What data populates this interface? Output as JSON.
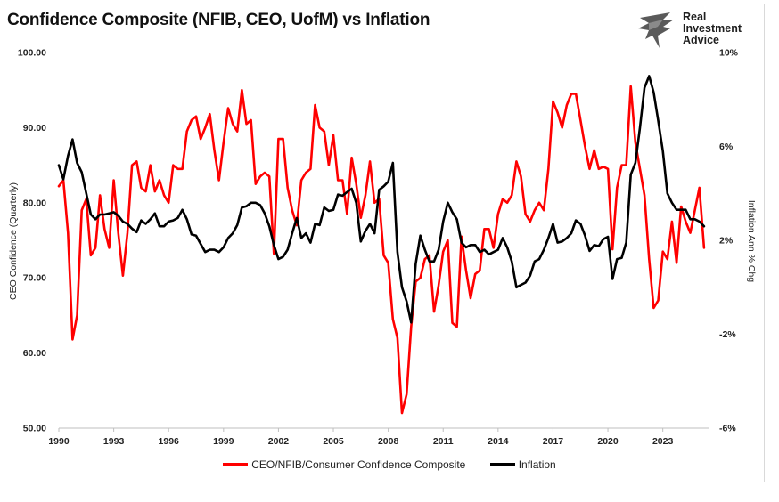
{
  "title": "Confidence Composite (NFIB, CEO, UofM) vs Inflation",
  "logo": {
    "line1": "Real",
    "line2": "Investment",
    "line3": "Advice"
  },
  "chart_data": {
    "type": "line",
    "title": "Confidence Composite (NFIB, CEO, UofM) vs Inflation",
    "ylabel": "CEO Confidence (Quarterly)",
    "y2label": "Inflation Ann % Chg",
    "ylim": [
      50,
      100
    ],
    "y2lim": [
      -6,
      10
    ],
    "xlim": [
      1990,
      2025.5
    ],
    "y_ticks": [
      "50.00",
      "60.00",
      "70.00",
      "80.00",
      "90.00",
      "100.00"
    ],
    "y2_ticks": [
      "-6%",
      "-2%",
      "2%",
      "6%",
      "10%"
    ],
    "x_ticks": [
      "1990",
      "1993",
      "1996",
      "1999",
      "2002",
      "2005",
      "2008",
      "2011",
      "2014",
      "2017",
      "2020",
      "2023"
    ],
    "grid": "off",
    "legend_position": "bottom",
    "series": [
      {
        "name": "CEO/NFIB/Consumer Confidence Composite",
        "color": "#ff0000",
        "axis": "left",
        "points": [
          [
            1990,
            82.2
          ],
          [
            1990.25,
            83
          ],
          [
            1990.5,
            76
          ],
          [
            1990.75,
            61.8
          ],
          [
            1991,
            65
          ],
          [
            1991.25,
            79
          ],
          [
            1991.5,
            80.5
          ],
          [
            1991.75,
            73
          ],
          [
            1992,
            74
          ],
          [
            1992.25,
            81
          ],
          [
            1992.5,
            76.5
          ],
          [
            1992.75,
            74
          ],
          [
            1993,
            83
          ],
          [
            1993.25,
            76
          ],
          [
            1993.5,
            70.3
          ],
          [
            1993.75,
            76
          ],
          [
            1994,
            85
          ],
          [
            1994.25,
            85.5
          ],
          [
            1994.5,
            82
          ],
          [
            1994.75,
            81.5
          ],
          [
            1995,
            85
          ],
          [
            1995.25,
            81.5
          ],
          [
            1995.5,
            83
          ],
          [
            1995.75,
            81
          ],
          [
            1996,
            80
          ],
          [
            1996.25,
            85
          ],
          [
            1996.5,
            84.5
          ],
          [
            1996.75,
            84.5
          ],
          [
            1997,
            89.5
          ],
          [
            1997.25,
            91
          ],
          [
            1997.5,
            91.5
          ],
          [
            1997.75,
            88.5
          ],
          [
            1998,
            90
          ],
          [
            1998.25,
            91.8
          ],
          [
            1998.5,
            87
          ],
          [
            1998.75,
            83
          ],
          [
            1999,
            88
          ],
          [
            1999.25,
            92.6
          ],
          [
            1999.5,
            90.5
          ],
          [
            1999.75,
            89.5
          ],
          [
            2000,
            95
          ],
          [
            2000.25,
            90.5
          ],
          [
            2000.5,
            91
          ],
          [
            2000.75,
            82.5
          ],
          [
            2001,
            83.5
          ],
          [
            2001.25,
            84
          ],
          [
            2001.5,
            83.5
          ],
          [
            2001.75,
            73.2
          ],
          [
            2002,
            88.5
          ],
          [
            2002.25,
            88.5
          ],
          [
            2002.5,
            82
          ],
          [
            2002.75,
            79
          ],
          [
            2003,
            77
          ],
          [
            2003.25,
            83
          ],
          [
            2003.5,
            84
          ],
          [
            2003.75,
            84.5
          ],
          [
            2004,
            93
          ],
          [
            2004.25,
            90
          ],
          [
            2004.5,
            89.5
          ],
          [
            2004.75,
            85
          ],
          [
            2005,
            89
          ],
          [
            2005.25,
            83
          ],
          [
            2005.5,
            83
          ],
          [
            2005.75,
            78.5
          ],
          [
            2006,
            86
          ],
          [
            2006.25,
            82.5
          ],
          [
            2006.5,
            78
          ],
          [
            2006.75,
            81
          ],
          [
            2007,
            85.5
          ],
          [
            2007.25,
            80
          ],
          [
            2007.5,
            80.5
          ],
          [
            2007.75,
            73
          ],
          [
            2008,
            72
          ],
          [
            2008.25,
            64.5
          ],
          [
            2008.5,
            62
          ],
          [
            2008.75,
            52
          ],
          [
            2009,
            54.5
          ],
          [
            2009.25,
            63.5
          ],
          [
            2009.5,
            69.5
          ],
          [
            2009.75,
            70
          ],
          [
            2010,
            72.5
          ],
          [
            2010.25,
            73
          ],
          [
            2010.5,
            65.5
          ],
          [
            2010.75,
            69
          ],
          [
            2011,
            73.5
          ],
          [
            2011.25,
            75
          ],
          [
            2011.5,
            64
          ],
          [
            2011.75,
            63.5
          ],
          [
            2012,
            75.5
          ],
          [
            2012.25,
            71
          ],
          [
            2012.5,
            67.3
          ],
          [
            2012.75,
            70.5
          ],
          [
            2013,
            71
          ],
          [
            2013.25,
            76.5
          ],
          [
            2013.5,
            76.5
          ],
          [
            2013.75,
            74
          ],
          [
            2014,
            78.5
          ],
          [
            2014.25,
            80.5
          ],
          [
            2014.5,
            80
          ],
          [
            2014.75,
            81
          ],
          [
            2015,
            85.5
          ],
          [
            2015.25,
            83.5
          ],
          [
            2015.5,
            78.5
          ],
          [
            2015.75,
            77.5
          ],
          [
            2016,
            79
          ],
          [
            2016.25,
            80
          ],
          [
            2016.5,
            79
          ],
          [
            2016.75,
            84.5
          ],
          [
            2017,
            93.5
          ],
          [
            2017.25,
            92
          ],
          [
            2017.5,
            90
          ],
          [
            2017.75,
            93
          ],
          [
            2018,
            94.5
          ],
          [
            2018.25,
            94.5
          ],
          [
            2018.5,
            91
          ],
          [
            2018.75,
            87.5
          ],
          [
            2019,
            84.5
          ],
          [
            2019.25,
            87
          ],
          [
            2019.5,
            84.5
          ],
          [
            2019.75,
            84.8
          ],
          [
            2020,
            84.5
          ],
          [
            2020.25,
            73.8
          ],
          [
            2020.5,
            82
          ],
          [
            2020.75,
            85
          ],
          [
            2021,
            85
          ],
          [
            2021.25,
            95.5
          ],
          [
            2021.5,
            88
          ],
          [
            2021.75,
            84.5
          ],
          [
            2022,
            81
          ],
          [
            2022.25,
            72.5
          ],
          [
            2022.5,
            66
          ],
          [
            2022.75,
            67
          ],
          [
            2023,
            73.5
          ],
          [
            2023.25,
            72.5
          ],
          [
            2023.5,
            77.5
          ],
          [
            2023.75,
            72
          ],
          [
            2024,
            79.5
          ],
          [
            2024.25,
            77.5
          ],
          [
            2024.5,
            76
          ],
          [
            2024.75,
            79
          ],
          [
            2025,
            82
          ],
          [
            2025.25,
            74
          ]
        ]
      },
      {
        "name": "Inflation",
        "color": "#000000",
        "axis": "right",
        "points": [
          [
            1990,
            5.2
          ],
          [
            1990.25,
            4.6
          ],
          [
            1990.5,
            5.6
          ],
          [
            1990.75,
            6.3
          ],
          [
            1991,
            5.3
          ],
          [
            1991.25,
            4.9
          ],
          [
            1991.5,
            4
          ],
          [
            1991.75,
            3.1
          ],
          [
            1992,
            2.9
          ],
          [
            1992.25,
            3.1
          ],
          [
            1992.5,
            3.1
          ],
          [
            1992.75,
            3.15
          ],
          [
            1993,
            3.2
          ],
          [
            1993.25,
            3.05
          ],
          [
            1993.5,
            2.8
          ],
          [
            1993.75,
            2.7
          ],
          [
            1994,
            2.5
          ],
          [
            1994.25,
            2.35
          ],
          [
            1994.5,
            2.85
          ],
          [
            1994.75,
            2.7
          ],
          [
            1995,
            2.9
          ],
          [
            1995.25,
            3.15
          ],
          [
            1995.5,
            2.6
          ],
          [
            1995.75,
            2.6
          ],
          [
            1996,
            2.8
          ],
          [
            1996.25,
            2.85
          ],
          [
            1996.5,
            2.95
          ],
          [
            1996.75,
            3.3
          ],
          [
            1997,
            2.9
          ],
          [
            1997.25,
            2.25
          ],
          [
            1997.5,
            2.2
          ],
          [
            1997.75,
            1.85
          ],
          [
            1998,
            1.5
          ],
          [
            1998.25,
            1.6
          ],
          [
            1998.5,
            1.6
          ],
          [
            1998.75,
            1.5
          ],
          [
            1999,
            1.7
          ],
          [
            1999.25,
            2.1
          ],
          [
            1999.5,
            2.3
          ],
          [
            1999.75,
            2.65
          ],
          [
            2000,
            3.4
          ],
          [
            2000.25,
            3.45
          ],
          [
            2000.5,
            3.6
          ],
          [
            2000.75,
            3.6
          ],
          [
            2001,
            3.5
          ],
          [
            2001.25,
            3.15
          ],
          [
            2001.5,
            2.6
          ],
          [
            2001.75,
            1.8
          ],
          [
            2002,
            1.2
          ],
          [
            2002.25,
            1.3
          ],
          [
            2002.5,
            1.6
          ],
          [
            2002.75,
            2.3
          ],
          [
            2003,
            2.95
          ],
          [
            2003.25,
            2.1
          ],
          [
            2003.5,
            2.3
          ],
          [
            2003.75,
            1.9
          ],
          [
            2004,
            2.7
          ],
          [
            2004.25,
            2.65
          ],
          [
            2004.5,
            3.4
          ],
          [
            2004.75,
            3.25
          ],
          [
            2005,
            3.3
          ],
          [
            2005.25,
            3.95
          ],
          [
            2005.5,
            3.9
          ],
          [
            2005.75,
            4.05
          ],
          [
            2006,
            4.2
          ],
          [
            2006.25,
            3.6
          ],
          [
            2006.5,
            1.95
          ],
          [
            2006.75,
            2.4
          ],
          [
            2007,
            2.7
          ],
          [
            2007.25,
            2.3
          ],
          [
            2007.5,
            4.15
          ],
          [
            2007.75,
            4.3
          ],
          [
            2008,
            4.5
          ],
          [
            2008.25,
            5.3
          ],
          [
            2008.5,
            1.5
          ],
          [
            2008.75,
            0
          ],
          [
            2009,
            -0.6
          ],
          [
            2009.25,
            -1.5
          ],
          [
            2009.5,
            1
          ],
          [
            2009.75,
            2.2
          ],
          [
            2010,
            1.6
          ],
          [
            2010.25,
            1.1
          ],
          [
            2010.5,
            1.1
          ],
          [
            2010.75,
            1.6
          ],
          [
            2011,
            2.8
          ],
          [
            2011.25,
            3.6
          ],
          [
            2011.5,
            3.2
          ],
          [
            2011.75,
            2.9
          ],
          [
            2012,
            1.9
          ],
          [
            2012.25,
            1.7
          ],
          [
            2012.5,
            1.8
          ],
          [
            2012.75,
            1.8
          ],
          [
            2013,
            1.5
          ],
          [
            2013.25,
            1.6
          ],
          [
            2013.5,
            1.4
          ],
          [
            2013.75,
            1.5
          ],
          [
            2014,
            1.6
          ],
          [
            2014.25,
            2.1
          ],
          [
            2014.5,
            1.7
          ],
          [
            2014.75,
            1.1
          ],
          [
            2015,
            0
          ],
          [
            2015.25,
            0.1
          ],
          [
            2015.5,
            0.2
          ],
          [
            2015.75,
            0.5
          ],
          [
            2016,
            1.1
          ],
          [
            2016.25,
            1.2
          ],
          [
            2016.5,
            1.6
          ],
          [
            2016.75,
            2.1
          ],
          [
            2017,
            2.7
          ],
          [
            2017.25,
            1.9
          ],
          [
            2017.5,
            1.95
          ],
          [
            2017.75,
            2.1
          ],
          [
            2018,
            2.3
          ],
          [
            2018.25,
            2.85
          ],
          [
            2018.5,
            2.7
          ],
          [
            2018.75,
            2.2
          ],
          [
            2019,
            1.55
          ],
          [
            2019.25,
            1.8
          ],
          [
            2019.5,
            1.75
          ],
          [
            2019.75,
            2.05
          ],
          [
            2020,
            2.15
          ],
          [
            2020.25,
            0.35
          ],
          [
            2020.5,
            1.2
          ],
          [
            2020.75,
            1.25
          ],
          [
            2021,
            1.9
          ],
          [
            2021.25,
            4.8
          ],
          [
            2021.5,
            5.3
          ],
          [
            2021.75,
            6.8
          ],
          [
            2022,
            8.5
          ],
          [
            2022.25,
            9
          ],
          [
            2022.5,
            8.3
          ],
          [
            2022.75,
            7.1
          ],
          [
            2023,
            5.8
          ],
          [
            2023.25,
            4
          ],
          [
            2023.5,
            3.6
          ],
          [
            2023.75,
            3.3
          ],
          [
            2024,
            3.3
          ],
          [
            2024.25,
            3.3
          ],
          [
            2024.5,
            2.9
          ],
          [
            2024.75,
            2.9
          ],
          [
            2025,
            2.8
          ],
          [
            2025.25,
            2.6
          ]
        ]
      }
    ]
  }
}
